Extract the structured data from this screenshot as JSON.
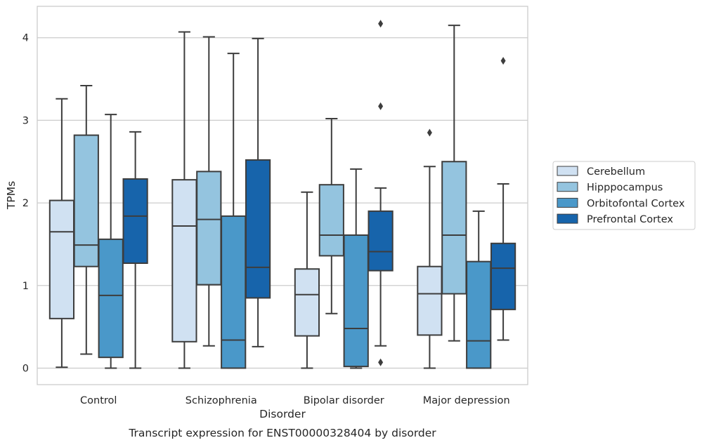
{
  "chart_data": {
    "type": "boxplot",
    "caption": "Transcript expression for ENST00000328404 by disorder",
    "xlabel": "Disorder",
    "ylabel": "TPMs",
    "ylim": [
      -0.2,
      4.38
    ],
    "yticks": [
      0,
      1,
      2,
      3,
      4
    ],
    "grid": "horizontal",
    "legend_position": "right",
    "categories": [
      "Control",
      "Schizophrenia",
      "Bipolar disorder",
      "Major depression"
    ],
    "series": [
      {
        "name": "Cerebellum",
        "color": "#d0e1f2",
        "boxes": [
          {
            "whislo": 0.01,
            "q1": 0.6,
            "med": 1.65,
            "q3": 2.03,
            "whishi": 3.26,
            "fliers": []
          },
          {
            "whislo": 0.0,
            "q1": 0.32,
            "med": 1.72,
            "q3": 2.28,
            "whishi": 4.07,
            "fliers": []
          },
          {
            "whislo": 0.0,
            "q1": 0.39,
            "med": 0.89,
            "q3": 1.2,
            "whishi": 2.13,
            "fliers": []
          },
          {
            "whislo": 0.0,
            "q1": 0.4,
            "med": 0.9,
            "q3": 1.23,
            "whishi": 2.44,
            "fliers": [
              2.85
            ]
          }
        ]
      },
      {
        "name": "Hipppocampus",
        "color": "#94c4df",
        "boxes": [
          {
            "whislo": 0.17,
            "q1": 1.23,
            "med": 1.49,
            "q3": 2.82,
            "whishi": 3.42,
            "fliers": []
          },
          {
            "whislo": 0.27,
            "q1": 1.01,
            "med": 1.8,
            "q3": 2.38,
            "whishi": 4.01,
            "fliers": []
          },
          {
            "whislo": 0.66,
            "q1": 1.36,
            "med": 1.61,
            "q3": 2.22,
            "whishi": 3.02,
            "fliers": []
          },
          {
            "whislo": 0.33,
            "q1": 0.9,
            "med": 1.61,
            "q3": 2.5,
            "whishi": 4.15,
            "fliers": []
          }
        ]
      },
      {
        "name": "Orbitofontal Cortex",
        "color": "#4a98c9",
        "boxes": [
          {
            "whislo": 0.0,
            "q1": 0.13,
            "med": 0.88,
            "q3": 1.56,
            "whishi": 3.07,
            "fliers": []
          },
          {
            "whislo": 0.0,
            "q1": 0.0,
            "med": 0.34,
            "q3": 1.84,
            "whishi": 3.81,
            "fliers": []
          },
          {
            "whislo": 0.0,
            "q1": 0.02,
            "med": 0.48,
            "q3": 1.61,
            "whishi": 2.41,
            "fliers": []
          },
          {
            "whislo": 0.0,
            "q1": 0.0,
            "med": 0.33,
            "q3": 1.29,
            "whishi": 1.9,
            "fliers": []
          }
        ]
      },
      {
        "name": "Prefrontal Cortex",
        "color": "#1764ab",
        "boxes": [
          {
            "whislo": 0.0,
            "q1": 1.27,
            "med": 1.84,
            "q3": 2.29,
            "whishi": 2.86,
            "fliers": []
          },
          {
            "whislo": 0.26,
            "q1": 0.85,
            "med": 1.22,
            "q3": 2.52,
            "whishi": 3.99,
            "fliers": []
          },
          {
            "whislo": 0.27,
            "q1": 1.18,
            "med": 1.41,
            "q3": 1.9,
            "whishi": 2.18,
            "fliers": [
              0.07,
              3.17,
              4.17
            ]
          },
          {
            "whislo": 0.34,
            "q1": 0.71,
            "med": 1.21,
            "q3": 1.51,
            "whishi": 2.23,
            "fliers": [
              3.72
            ]
          }
        ]
      }
    ]
  }
}
